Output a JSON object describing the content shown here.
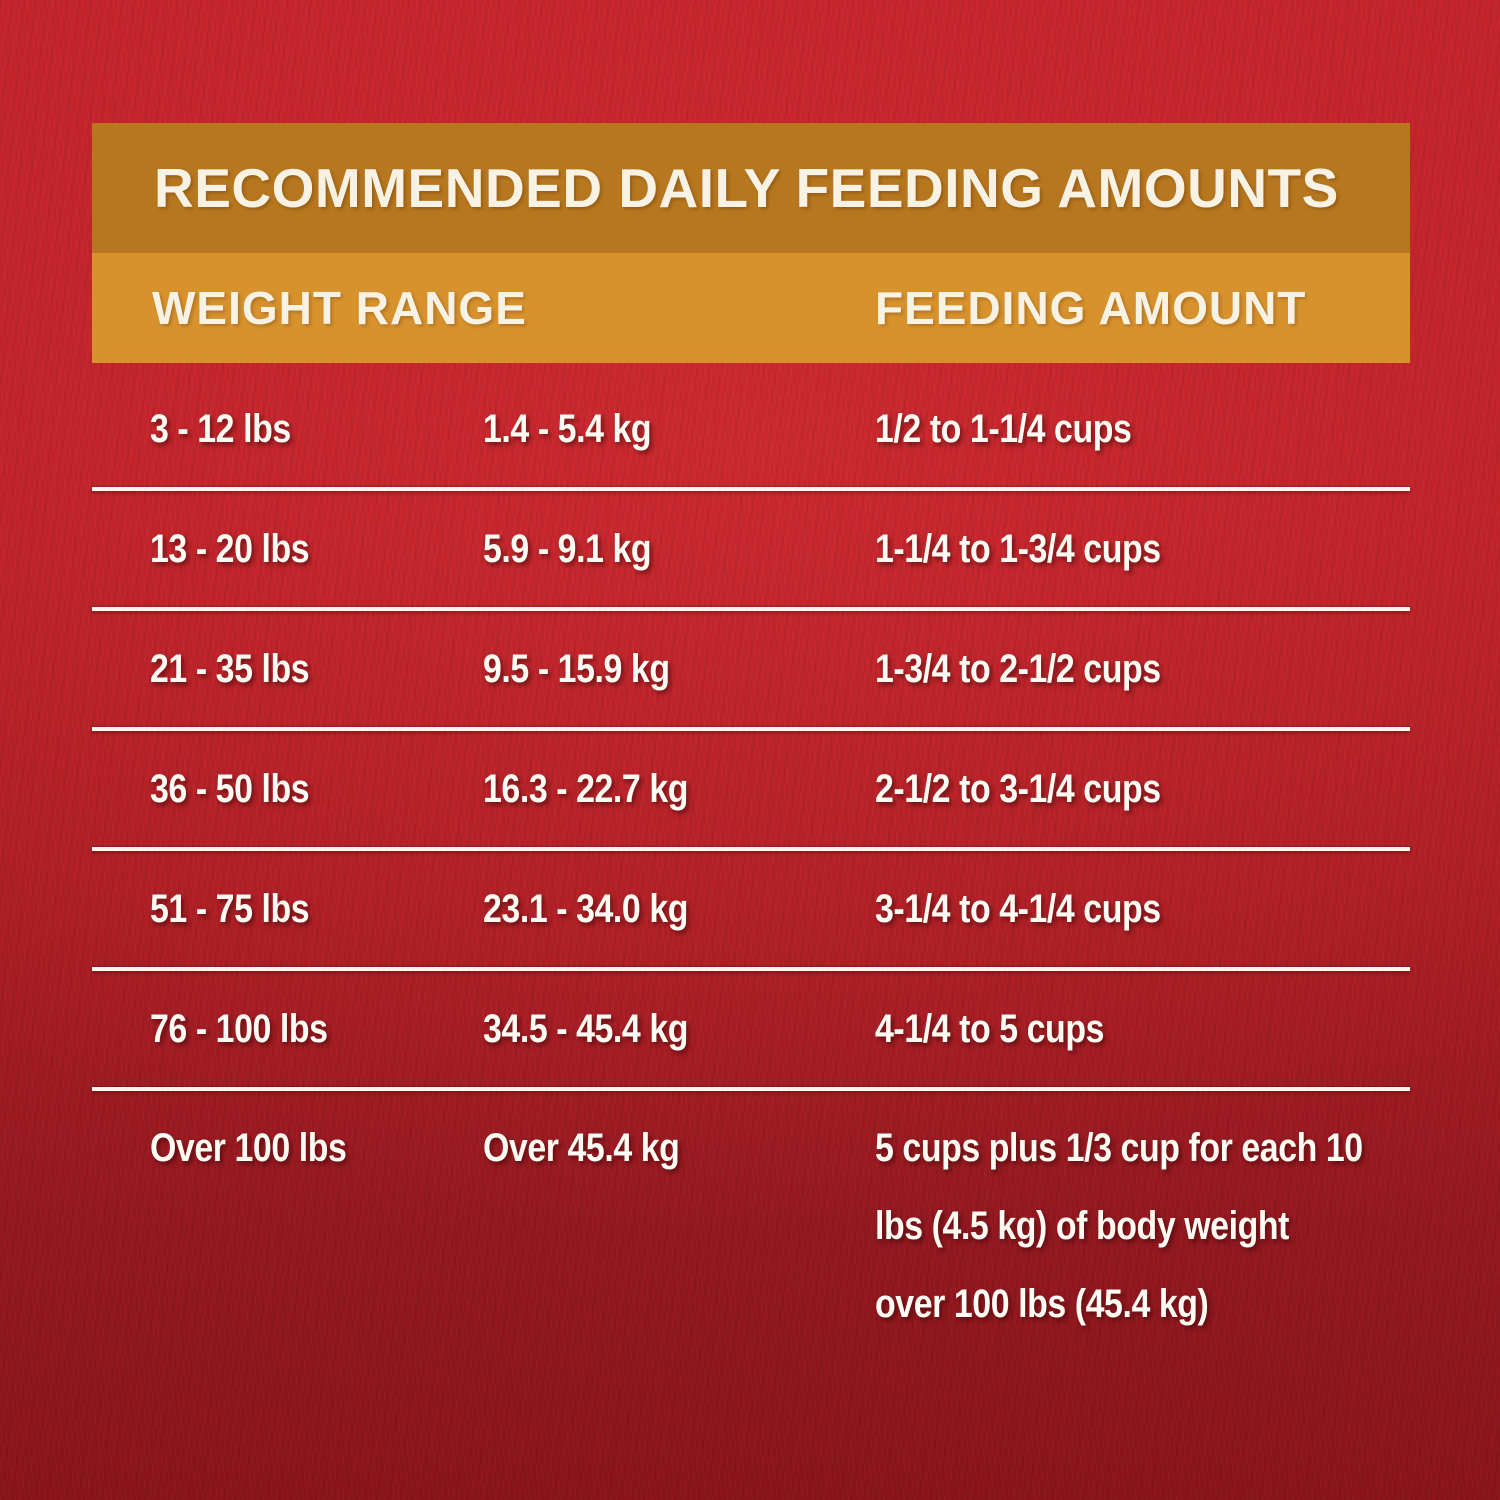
{
  "chart_data": {
    "type": "table",
    "title": "RECOMMENDED DAILY FEEDING AMOUNTS",
    "columns": [
      "WEIGHT RANGE",
      "FEEDING AMOUNT"
    ],
    "rows": [
      {
        "lbs": "3 - 12 lbs",
        "kg": "1.4 - 5.4 kg",
        "cups": "1/2 to 1-1/4 cups"
      },
      {
        "lbs": "13 - 20 lbs",
        "kg": "5.9 - 9.1 kg",
        "cups": "1-1/4 to 1-3/4 cups"
      },
      {
        "lbs": "21 - 35 lbs",
        "kg": "9.5 - 15.9 kg",
        "cups": "1-3/4 to 2-1/2 cups"
      },
      {
        "lbs": "36 - 50 lbs",
        "kg": "16.3 - 22.7 kg",
        "cups": "2-1/2 to 3-1/4 cups"
      },
      {
        "lbs": "51 - 75 lbs",
        "kg": "23.1 - 34.0 kg",
        "cups": "3-1/4 to 4-1/4 cups"
      },
      {
        "lbs": "76 - 100 lbs",
        "kg": "34.5 - 45.4 kg",
        "cups": "4-1/4 to 5 cups"
      },
      {
        "lbs": "Over 100 lbs",
        "kg": "Over 45.4 kg",
        "cups": "5 cups plus 1/3 cup for each 10 lbs (4.5 kg) of body weight over 100 lbs (45.4 kg)",
        "cups_lines": [
          "5 cups plus 1/3 cup for each 10",
          "lbs (4.5 kg) of body weight",
          "over 100 lbs (45.4 kg)"
        ]
      }
    ]
  },
  "colors": {
    "background_red_top": "#c8242b",
    "background_red_bottom": "#8b151b",
    "title_bar_orange": "#b7771f",
    "header_bar_orange": "#d7922d",
    "header_text_cream": "#f8f2e4",
    "row_text_white": "#fdfbf3",
    "divider_white": "#fbf8ef"
  }
}
